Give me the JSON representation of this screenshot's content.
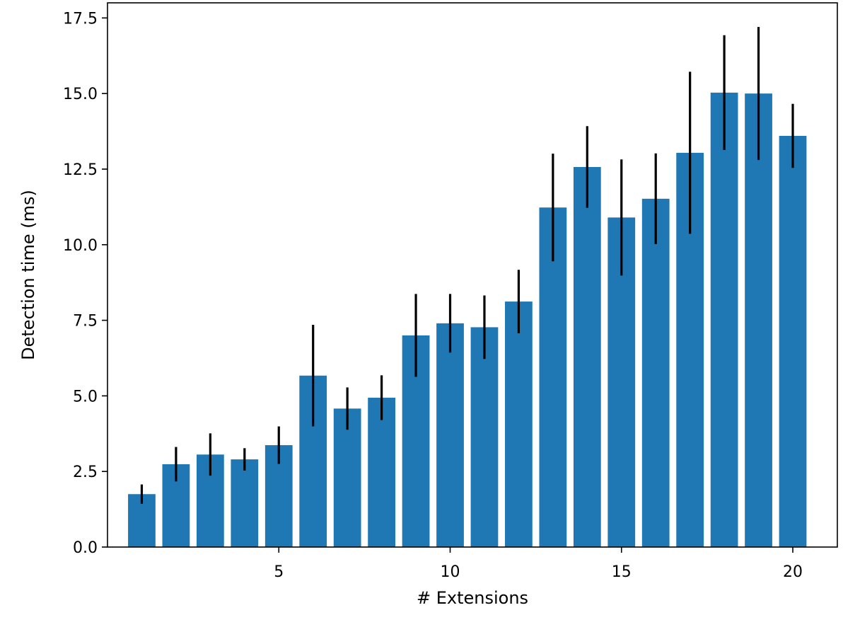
{
  "chart_data": {
    "type": "bar",
    "title": "",
    "xlabel": "# Extensions",
    "ylabel": "Detection time (ms)",
    "xlim": [
      0,
      21.3
    ],
    "ylim": [
      0,
      18.0
    ],
    "x": [
      1,
      2,
      3,
      4,
      5,
      6,
      7,
      8,
      9,
      10,
      11,
      12,
      13,
      14,
      15,
      16,
      17,
      18,
      19,
      20
    ],
    "values": [
      1.75,
      2.74,
      3.06,
      2.9,
      3.37,
      5.67,
      4.58,
      4.94,
      7.0,
      7.4,
      7.27,
      8.12,
      11.23,
      12.57,
      10.9,
      11.52,
      13.04,
      15.03,
      15.0,
      13.6
    ],
    "errors": [
      0.32,
      0.57,
      0.7,
      0.37,
      0.62,
      1.68,
      0.7,
      0.74,
      1.37,
      0.97,
      1.05,
      1.05,
      1.78,
      1.35,
      1.92,
      1.5,
      2.68,
      1.9,
      2.2,
      1.06
    ],
    "x_ticks": [
      5,
      10,
      15,
      20
    ],
    "y_ticks": [
      0.0,
      2.5,
      5.0,
      7.5,
      10.0,
      12.5,
      15.0,
      17.5
    ],
    "x_tick_labels": [
      "5",
      "10",
      "15",
      "20"
    ],
    "y_tick_labels": [
      "0.0",
      "2.5",
      "5.0",
      "7.5",
      "10.0",
      "12.5",
      "15.0",
      "17.5"
    ],
    "bar_color": "#1f77b4",
    "error_color": "#000000",
    "grid": false,
    "legend": "none"
  }
}
